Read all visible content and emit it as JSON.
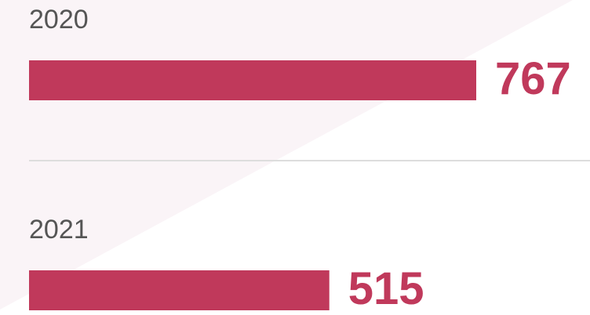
{
  "chart_data": {
    "type": "bar",
    "orientation": "horizontal",
    "categories": [
      "2020",
      "2021"
    ],
    "values": [
      767,
      515
    ],
    "color": "#c0395b"
  }
}
